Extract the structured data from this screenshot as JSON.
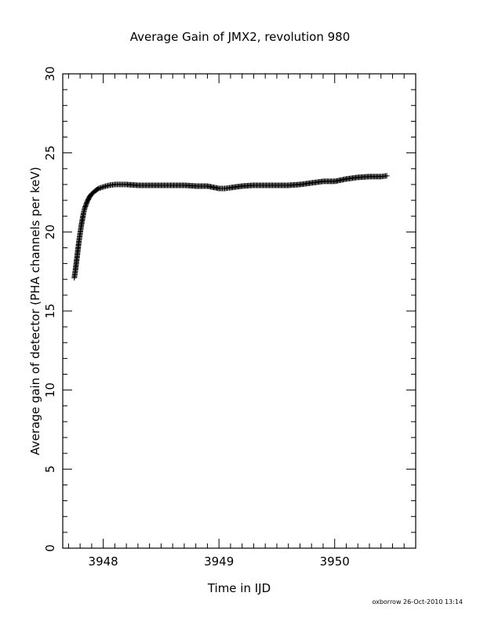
{
  "chart_data": {
    "type": "scatter",
    "title": "Average Gain of JMX2, revolution 980",
    "xlabel": "Time in IJD",
    "ylabel": "Average gain of detector (PHA channels per keV)",
    "xlim": [
      3947.65,
      3950.7
    ],
    "ylim": [
      0,
      30
    ],
    "x_ticks": [
      "3948",
      "3949",
      "3950"
    ],
    "y_ticks": [
      "0",
      "5",
      "10",
      "15",
      "20",
      "25",
      "30"
    ],
    "grid": false,
    "marker": "+",
    "series": [
      {
        "x": [
          3947.75,
          3947.76,
          3947.77,
          3947.78,
          3947.79,
          3947.8,
          3947.81,
          3947.82,
          3947.83,
          3947.84,
          3947.86,
          3947.88,
          3947.9,
          3947.93,
          3947.96,
          3948.0,
          3948.05,
          3948.1,
          3948.15,
          3948.2,
          3948.3,
          3948.4,
          3948.5,
          3948.6,
          3948.7,
          3948.8,
          3948.9,
          3949.0,
          3949.05,
          3949.1,
          3949.2,
          3949.3,
          3949.4,
          3949.5,
          3949.6,
          3949.7,
          3949.8,
          3949.9,
          3950.0,
          3950.1,
          3950.2,
          3950.3,
          3950.4,
          3950.45
        ],
        "y": [
          17.1,
          17.6,
          18.2,
          18.8,
          19.4,
          19.9,
          20.4,
          20.8,
          21.2,
          21.5,
          21.9,
          22.2,
          22.4,
          22.6,
          22.75,
          22.85,
          22.95,
          23.0,
          23.0,
          23.0,
          22.95,
          22.95,
          22.95,
          22.95,
          22.95,
          22.9,
          22.9,
          22.75,
          22.75,
          22.8,
          22.9,
          22.95,
          22.95,
          22.95,
          22.95,
          23.0,
          23.1,
          23.2,
          23.2,
          23.35,
          23.45,
          23.5,
          23.5,
          23.55
        ]
      }
    ]
  },
  "footer": "oxborrow 26-Oct-2010 13:14"
}
